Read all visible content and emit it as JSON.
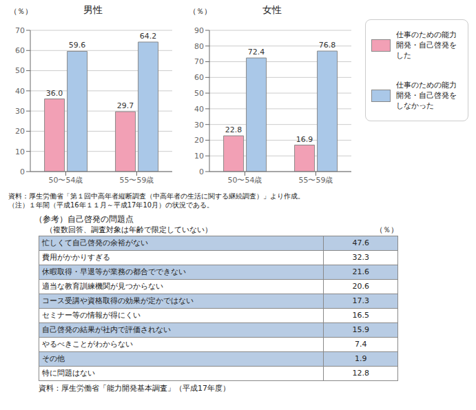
{
  "chart_data": [
    {
      "type": "bar",
      "title": "男性",
      "ylabel": "（％）",
      "categories": [
        "50〜54歳",
        "55〜59歳"
      ],
      "series": [
        {
          "name": "仕事のための能力\n開発・自己啓発を\nした",
          "color": "#f2a0b5",
          "values": [
            36.0,
            29.7
          ],
          "value_labels": [
            "36.0",
            "29.7"
          ]
        },
        {
          "name": "仕事のための能力\n開発・自己啓発を\nしなかった",
          "color": "#aac8e8",
          "values": [
            59.6,
            64.2
          ]
        }
      ],
      "ylim": [
        0,
        70
      ],
      "yticks": [
        0,
        10,
        20,
        30,
        40,
        50,
        60,
        70
      ],
      "grid": true,
      "data_labels": true,
      "legend": "right",
      "annotations": [
        "資料：厚生労働省「第１回中高年者縦断調査（中高年者の生活に関する継続調査）」より作成。",
        "（注）１年間（平成16年１１月～平成17年10月）の状況である。"
      ]
    },
    {
      "type": "bar",
      "title": "女性",
      "ylabel": "（％）",
      "categories": [
        "50〜54歳",
        "55〜59歳"
      ],
      "series": [
        {
          "name": "仕事のための能力\n開発・自己啓発を\nした",
          "color": "#f2a0b5",
          "values": [
            22.8,
            16.9
          ]
        },
        {
          "name": "仕事のための能力\n開発・自己啓発を\nしなかった",
          "color": "#aac8e8",
          "values": [
            72.4,
            76.8
          ]
        }
      ],
      "ylim": [
        0,
        90
      ],
      "yticks": [
        0,
        10,
        20,
        30,
        40,
        50,
        60,
        70,
        80,
        90
      ],
      "grid": true,
      "data_labels": true,
      "legend": "right"
    },
    {
      "type": "table",
      "title": "（参考）自己啓発の問題点",
      "subtitle": "（複数回答、調査対象は年齢で限定していない）",
      "ylabel": "（％）",
      "categories": [
        "忙しくて自己啓発の余裕がない",
        "費用がかかりすぎる",
        "休暇取得・早退等が業務の都合でできない",
        "適当な教育訓練機関が見つからない",
        "コース受講や資格取得の効果が定かではない",
        "セミナー等の情報が得にくい",
        "自己啓発の結果が社内で評価されない",
        "やるべきことがわからない",
        "その他",
        "特に問題はない"
      ],
      "values": [
        47.6,
        32.3,
        21.6,
        20.6,
        17.3,
        16.5,
        15.9,
        7.4,
        1.9,
        12.8
      ],
      "colors": [
        "#b8cce4",
        "#ffffff",
        "#b8cce4",
        "#ffffff",
        "#b8cce4",
        "#ffffff",
        "#b8cce4",
        "#ffffff",
        "#b8cce4",
        "#ffffff"
      ],
      "annotations": [
        "資料：厚生労働省「能力開発基本調査」（平成17年度）"
      ]
    }
  ]
}
